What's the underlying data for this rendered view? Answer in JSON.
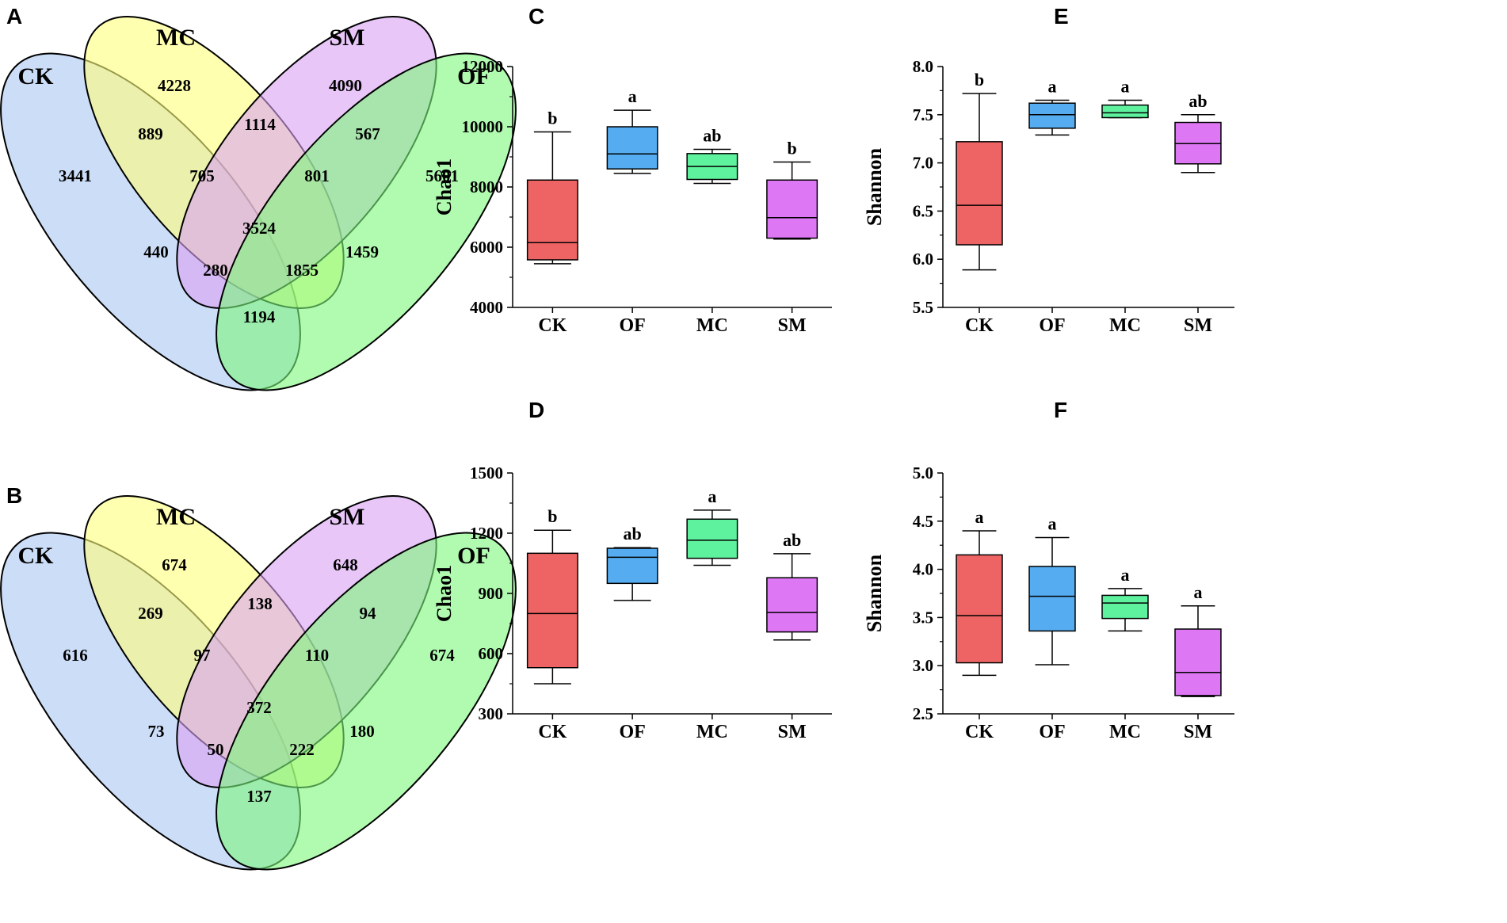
{
  "colors": {
    "CK": "#ee6464",
    "OF": "#55acf0",
    "MC": "#5ef29e",
    "SM": "#dd77f4",
    "venn_CK": "#aac6f2",
    "venn_MC": "#ffff7c",
    "venn_SM": "#d8a2f4",
    "venn_OF": "#7cf97c"
  },
  "venns": [
    {
      "panel": "A",
      "sets": {
        "CK": "CK",
        "MC": "MC",
        "SM": "SM",
        "OF": "OF"
      },
      "regions": {
        "CK": "3441",
        "MC": "4228",
        "SM": "4090",
        "OF": "5601",
        "CK_MC": "889",
        "MC_SM": "1114",
        "SM_OF": "567",
        "CK_MC_SM": "705",
        "MC_SM_OF": "801",
        "all": "3524",
        "CK_SM": "440",
        "MC_OF": "1459",
        "CK_SM_OF": "280",
        "CK_MC_OF": "1855",
        "CK_OF": "1194"
      }
    },
    {
      "panel": "B",
      "sets": {
        "CK": "CK",
        "MC": "MC",
        "SM": "SM",
        "OF": "OF"
      },
      "regions": {
        "CK": "616",
        "MC": "674",
        "SM": "648",
        "OF": "674",
        "CK_MC": "269",
        "MC_SM": "138",
        "SM_OF": "94",
        "CK_MC_SM": "97",
        "MC_SM_OF": "110",
        "all": "372",
        "CK_SM": "73",
        "MC_OF": "180",
        "CK_SM_OF": "50",
        "CK_MC_OF": "222",
        "CK_OF": "137"
      }
    }
  ],
  "chart_data": [
    {
      "panel": "C",
      "type": "box",
      "ylabel": "Chao1",
      "ylim": [
        4000,
        12000
      ],
      "yticks": [
        4000,
        6000,
        8000,
        10000,
        12000
      ],
      "categories": [
        "CK",
        "OF",
        "MC",
        "SM"
      ],
      "boxes": [
        {
          "min": 5450,
          "q1": 5580,
          "median": 6150,
          "q3": 8230,
          "max": 9830,
          "letter": "b"
        },
        {
          "min": 8450,
          "q1": 8600,
          "median": 9100,
          "q3": 10000,
          "max": 10550,
          "letter": "a"
        },
        {
          "min": 8120,
          "q1": 8250,
          "median": 8680,
          "q3": 9110,
          "max": 9250,
          "letter": "ab"
        },
        {
          "min": 6270,
          "q1": 6300,
          "median": 6980,
          "q3": 8230,
          "max": 8830,
          "letter": "b"
        }
      ]
    },
    {
      "panel": "E",
      "type": "box",
      "ylabel": "Shannon",
      "ylim": [
        5.5,
        8.0
      ],
      "yticks": [
        "5.5",
        "6.0",
        "6.5",
        "7.0",
        "7.5",
        "8.0"
      ],
      "categories": [
        "CK",
        "OF",
        "MC",
        "SM"
      ],
      "boxes": [
        {
          "min": 5.89,
          "q1": 6.15,
          "median": 6.56,
          "q3": 7.22,
          "max": 7.72,
          "letter": "b"
        },
        {
          "min": 7.29,
          "q1": 7.36,
          "median": 7.5,
          "q3": 7.62,
          "max": 7.65,
          "letter": "a"
        },
        {
          "min": 7.47,
          "q1": 7.47,
          "median": 7.52,
          "q3": 7.6,
          "max": 7.65,
          "letter": "a"
        },
        {
          "min": 6.9,
          "q1": 6.99,
          "median": 7.2,
          "q3": 7.42,
          "max": 7.5,
          "letter": "ab"
        }
      ]
    },
    {
      "panel": "D",
      "type": "box",
      "ylabel": "Chao1",
      "ylim": [
        300,
        1500
      ],
      "yticks": [
        300,
        600,
        900,
        1200,
        1500
      ],
      "categories": [
        "CK",
        "OF",
        "MC",
        "SM"
      ],
      "boxes": [
        {
          "min": 450,
          "q1": 530,
          "median": 800,
          "q3": 1100,
          "max": 1215,
          "letter": "b"
        },
        {
          "min": 865,
          "q1": 950,
          "median": 1080,
          "q3": 1125,
          "max": 1128,
          "letter": "ab"
        },
        {
          "min": 1040,
          "q1": 1075,
          "median": 1165,
          "q3": 1270,
          "max": 1315,
          "letter": "a"
        },
        {
          "min": 668,
          "q1": 708,
          "median": 805,
          "q3": 978,
          "max": 1098,
          "letter": "ab"
        }
      ]
    },
    {
      "panel": "F",
      "type": "box",
      "ylabel": "Shannon",
      "ylim": [
        2.5,
        5.0
      ],
      "yticks": [
        "2.5",
        "3.0",
        "3.5",
        "4.0",
        "4.5",
        "5.0"
      ],
      "categories": [
        "CK",
        "OF",
        "MC",
        "SM"
      ],
      "boxes": [
        {
          "min": 2.9,
          "q1": 3.03,
          "median": 3.52,
          "q3": 4.15,
          "max": 4.4,
          "letter": "a"
        },
        {
          "min": 3.01,
          "q1": 3.36,
          "median": 3.72,
          "q3": 4.03,
          "max": 4.33,
          "letter": "a"
        },
        {
          "min": 3.36,
          "q1": 3.49,
          "median": 3.65,
          "q3": 3.73,
          "max": 3.8,
          "letter": "a"
        },
        {
          "min": 2.68,
          "q1": 2.69,
          "median": 2.93,
          "q3": 3.38,
          "max": 3.62,
          "letter": "a"
        }
      ]
    }
  ]
}
